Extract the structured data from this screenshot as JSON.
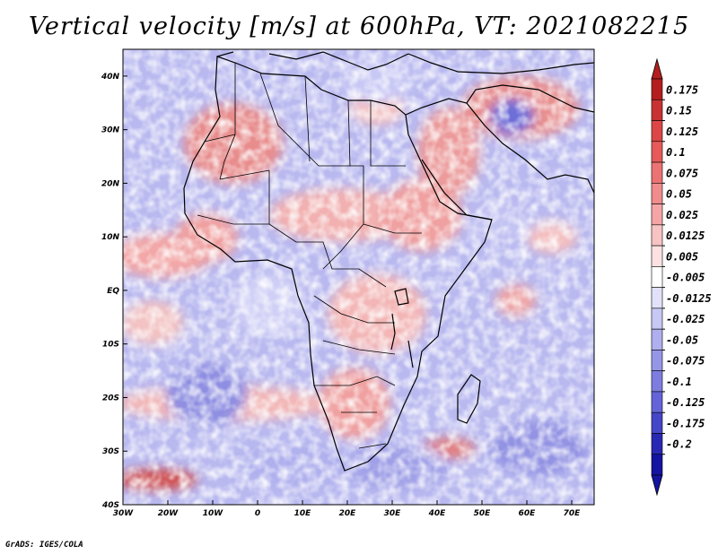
{
  "title": "Vertical velocity [m/s] at 600hPa, VT: 2021082215",
  "footer": "GrADS: IGES/COLA",
  "map": {
    "lon_range": [
      -30,
      75
    ],
    "lat_range": [
      -40,
      45
    ],
    "lat_ticks": [
      {
        "value": 40,
        "label": "40N"
      },
      {
        "value": 30,
        "label": "30N"
      },
      {
        "value": 20,
        "label": "20N"
      },
      {
        "value": 10,
        "label": "10N"
      },
      {
        "value": 0,
        "label": "EQ"
      },
      {
        "value": -10,
        "label": "10S"
      },
      {
        "value": -20,
        "label": "20S"
      },
      {
        "value": -30,
        "label": "30S"
      },
      {
        "value": -40,
        "label": "40S"
      }
    ],
    "lon_ticks": [
      {
        "value": -30,
        "label": "30W"
      },
      {
        "value": -20,
        "label": "20W"
      },
      {
        "value": -10,
        "label": "10W"
      },
      {
        "value": 0,
        "label": "0"
      },
      {
        "value": 10,
        "label": "10E"
      },
      {
        "value": 20,
        "label": "20E"
      },
      {
        "value": 30,
        "label": "30E"
      },
      {
        "value": 40,
        "label": "40E"
      },
      {
        "value": 50,
        "label": "50E"
      },
      {
        "value": 60,
        "label": "60E"
      },
      {
        "value": 70,
        "label": "70E"
      }
    ]
  },
  "colorbar": {
    "levels": [
      "0.175",
      "0.15",
      "0.125",
      "0.1",
      "0.075",
      "0.05",
      "0.025",
      "0.0125",
      "0.005",
      "-0.005",
      "-0.0125",
      "-0.025",
      "-0.05",
      "-0.075",
      "-0.1",
      "-0.125",
      "-0.175",
      "-0.2"
    ],
    "colors": [
      "#b41e1e",
      "#c83232",
      "#dc4646",
      "#e65a5a",
      "#eb7373",
      "#f08c8c",
      "#f5a5a5",
      "#f8c3c3",
      "#fbe1e1",
      "#ffffff",
      "#e1e1fa",
      "#c8c8f5",
      "#afafef",
      "#9696e8",
      "#7d7de0",
      "#6464d8",
      "#4646c8",
      "#2828b4",
      "#1414a0"
    ],
    "top_color": "#b41e1e",
    "bottom_color": "#1414a0"
  }
}
